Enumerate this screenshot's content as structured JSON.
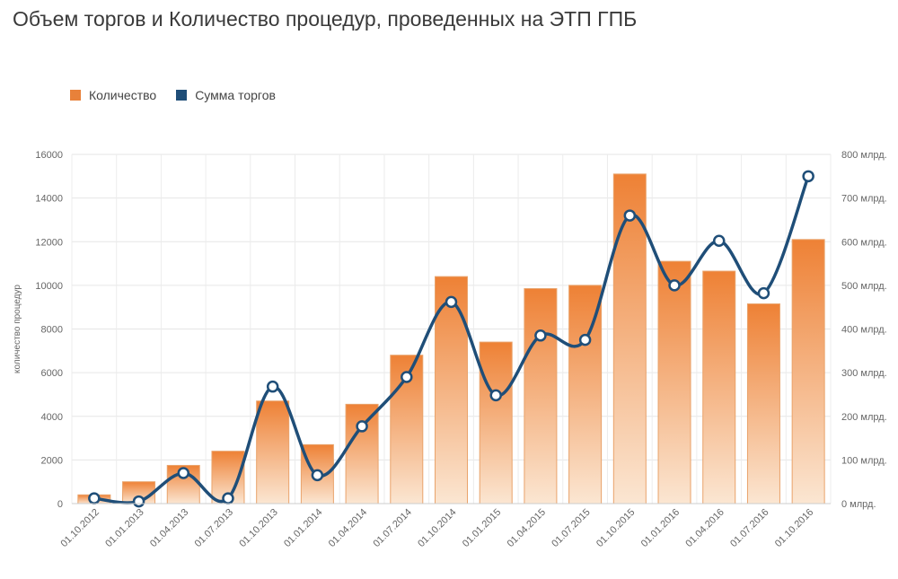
{
  "title": "Объем торгов и Количество процедур, проведенных на ЭТП ГПБ",
  "legend": [
    {
      "label": "Количество",
      "color": "#e8813a"
    },
    {
      "label": "Сумма торгов",
      "color": "#1f4e78"
    }
  ],
  "chart_data": {
    "type": "bar",
    "categories": [
      "01.10.2012",
      "01.01.2013",
      "01.04.2013",
      "01.07.2013",
      "01.10.2013",
      "01.01.2014",
      "01.04.2014",
      "01.07.2014",
      "01.10.2014",
      "01.01.2015",
      "01.04.2015",
      "01.07.2015",
      "01.10.2015",
      "01.01.2016",
      "01.04.2016",
      "01.07.2016",
      "01.10.2016"
    ],
    "series": [
      {
        "name": "Количество",
        "type": "bar",
        "axis": "left",
        "values": [
          400,
          1000,
          1750,
          2400,
          4700,
          2700,
          4550,
          6800,
          10400,
          7400,
          9850,
          10000,
          15100,
          11100,
          10650,
          9150,
          12100
        ]
      },
      {
        "name": "Сумма торгов",
        "type": "line",
        "axis": "right",
        "values": [
          12,
          5,
          70,
          12,
          268,
          65,
          177,
          290,
          462,
          248,
          385,
          375,
          660,
          500,
          602,
          482,
          750
        ]
      }
    ],
    "ylabel": "количество процедур",
    "ylim": [
      0,
      16000
    ],
    "yticks": [
      "0",
      "2000",
      "4000",
      "6000",
      "8000",
      "10000",
      "12000",
      "14000",
      "16000"
    ],
    "y2lim": [
      0,
      800
    ],
    "y2ticks": [
      "0 млрд.",
      "100 млрд.",
      "200 млрд.",
      "300 млрд.",
      "400 млрд.",
      "500 млрд.",
      "600 млрд.",
      "700 млрд.",
      "800 млрд."
    ],
    "grid": true,
    "legend_position": "top-left"
  }
}
